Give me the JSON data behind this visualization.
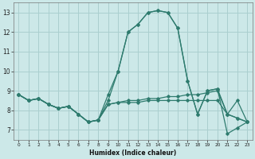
{
  "xlabel": "Humidex (Indice chaleur)",
  "xlim": [
    -0.5,
    23.5
  ],
  "ylim": [
    6.5,
    13.5
  ],
  "yticks": [
    7,
    8,
    9,
    10,
    11,
    12,
    13
  ],
  "xticks": [
    0,
    1,
    2,
    3,
    4,
    5,
    6,
    7,
    8,
    9,
    10,
    11,
    12,
    13,
    14,
    15,
    16,
    17,
    18,
    19,
    20,
    21,
    22,
    23
  ],
  "bg_color": "#cce8e8",
  "grid_color": "#aacfcf",
  "line_color": "#2e7b6e",
  "curves": [
    [
      8.8,
      8.5,
      8.6,
      8.3,
      8.1,
      8.2,
      7.8,
      7.4,
      7.5,
      8.3,
      8.4,
      8.4,
      8.4,
      8.5,
      8.5,
      8.5,
      8.5,
      8.5,
      8.5,
      8.5,
      8.5,
      7.8,
      7.6,
      7.4
    ],
    [
      8.8,
      8.5,
      8.6,
      8.3,
      8.1,
      8.2,
      7.8,
      7.4,
      7.5,
      8.3,
      8.4,
      8.5,
      8.5,
      8.6,
      8.6,
      8.7,
      8.7,
      8.8,
      8.8,
      8.9,
      9.0,
      7.8,
      7.6,
      7.4
    ],
    [
      8.8,
      8.5,
      8.6,
      8.3,
      8.1,
      8.2,
      7.8,
      7.4,
      7.5,
      8.5,
      10.0,
      12.0,
      12.4,
      13.0,
      13.1,
      13.0,
      12.2,
      9.5,
      7.8,
      9.0,
      9.1,
      6.8,
      7.1,
      7.4
    ],
    [
      8.8,
      8.5,
      8.6,
      8.3,
      8.1,
      8.2,
      7.8,
      7.4,
      7.5,
      8.8,
      10.0,
      12.0,
      12.4,
      13.0,
      13.1,
      13.0,
      12.2,
      9.5,
      7.8,
      9.0,
      9.1,
      7.8,
      8.5,
      7.4
    ]
  ]
}
